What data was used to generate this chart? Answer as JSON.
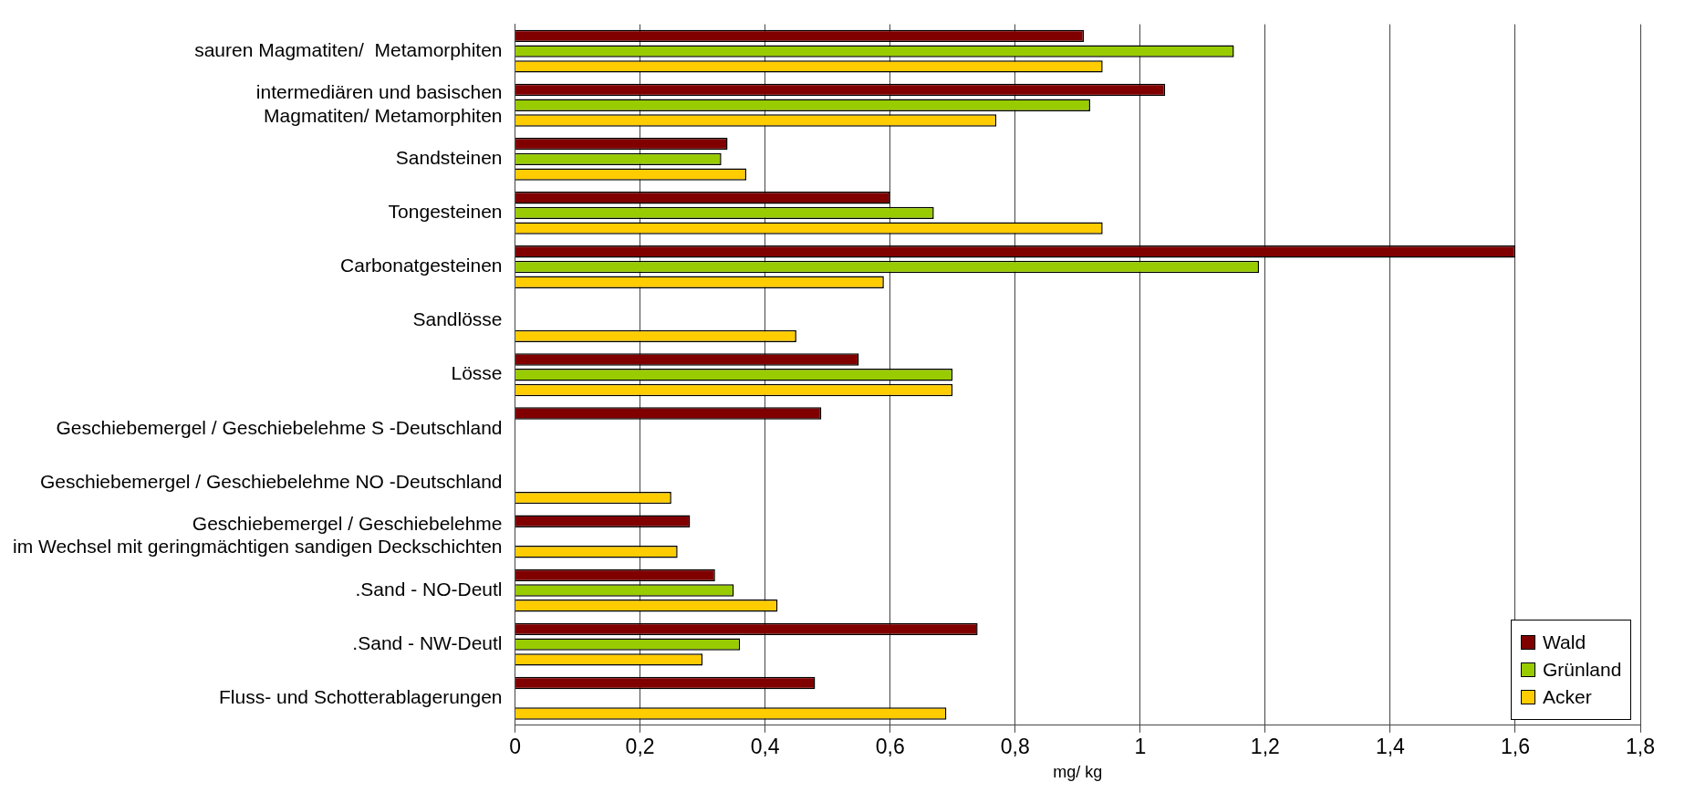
{
  "chart_data": {
    "type": "bar",
    "orientation": "horizontal",
    "xlabel": "mg/ kg",
    "categories": [
      "sauren Magmatiten/  Metamorphiten",
      "intermediären und basischen\nMagmatiten/ Metamorphiten",
      "Sandsteinen",
      "Tongesteinen",
      "Carbonatgesteinen",
      "Sandlösse",
      "Lösse",
      "Geschiebemergel / Geschiebelehme S -Deutschland",
      "Geschiebemergel / Geschiebelehme NO -Deutschland",
      "Geschiebemergel / Geschiebelehme\nim Wechsel mit geringmächtigen sandigen Deckschichten",
      ".Sand - NO-Deutl",
      ".Sand - NW-Deutl",
      "Fluss- und Schotterablagerungen"
    ],
    "series": [
      {
        "name": "Wald",
        "color": "#800000",
        "values": [
          0.91,
          1.04,
          0.34,
          0.6,
          1.6,
          null,
          0.55,
          0.49,
          null,
          0.28,
          0.32,
          0.74,
          0.48
        ]
      },
      {
        "name": "Grünland",
        "color": "#99cc00",
        "values": [
          1.15,
          0.92,
          0.33,
          0.67,
          1.19,
          null,
          0.7,
          null,
          null,
          null,
          0.35,
          0.36,
          null
        ]
      },
      {
        "name": "Acker",
        "color": "#ffcc00",
        "values": [
          0.94,
          0.77,
          0.37,
          0.94,
          0.59,
          0.45,
          0.7,
          null,
          0.25,
          0.26,
          0.42,
          0.3,
          0.69
        ]
      }
    ],
    "xlim": [
      0,
      1.8
    ],
    "xticks": [
      0,
      {
        "value": 0.2,
        "label": "0,2"
      },
      {
        "value": 0.4,
        "label": "0,4"
      },
      {
        "value": 0.6,
        "label": "0,6"
      },
      {
        "value": 0.8,
        "label": "0,8"
      },
      1,
      {
        "value": 1.2,
        "label": "1,2"
      },
      {
        "value": 1.4,
        "label": "1,4"
      },
      {
        "value": 1.6,
        "label": "1,6"
      },
      {
        "value": 1.8,
        "label": "1,8"
      }
    ],
    "grid": "x",
    "legend": "bottom right"
  }
}
